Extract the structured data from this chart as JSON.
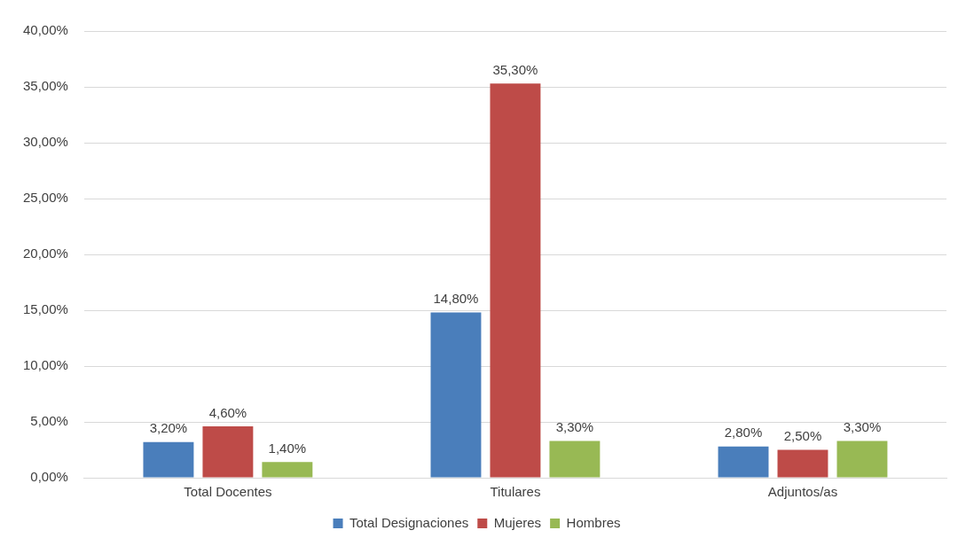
{
  "chart_data": {
    "type": "bar",
    "categories": [
      "Total Docentes",
      "Titulares",
      "Adjuntos/as"
    ],
    "series": [
      {
        "name": "Total Designaciones",
        "color": "#4a7ebb",
        "values": [
          3.2,
          14.8,
          2.8
        ],
        "value_labels": [
          "3,20%",
          "14,80%",
          "2,80%"
        ]
      },
      {
        "name": "Mujeres",
        "color": "#be4b48",
        "values": [
          4.6,
          35.3,
          2.5
        ],
        "value_labels": [
          "4,60%",
          "35,30%",
          "2,50%"
        ]
      },
      {
        "name": "Hombres",
        "color": "#98b954",
        "values": [
          1.4,
          3.3,
          3.3
        ],
        "value_labels": [
          "1,40%",
          "3,30%",
          "3,30%"
        ]
      }
    ],
    "ylim": [
      0,
      40
    ],
    "yticks": [
      {
        "value": 0,
        "label": "0,00%"
      },
      {
        "value": 5,
        "label": "5,00%"
      },
      {
        "value": 10,
        "label": "10,00%"
      },
      {
        "value": 15,
        "label": "15,00%"
      },
      {
        "value": 20,
        "label": "20,00%"
      },
      {
        "value": 25,
        "label": "25,00%"
      },
      {
        "value": 30,
        "label": "30,00%"
      },
      {
        "value": 35,
        "label": "35,00%"
      },
      {
        "value": 40,
        "label": "40,00%"
      }
    ],
    "grid": "y",
    "legend": "bottom"
  }
}
